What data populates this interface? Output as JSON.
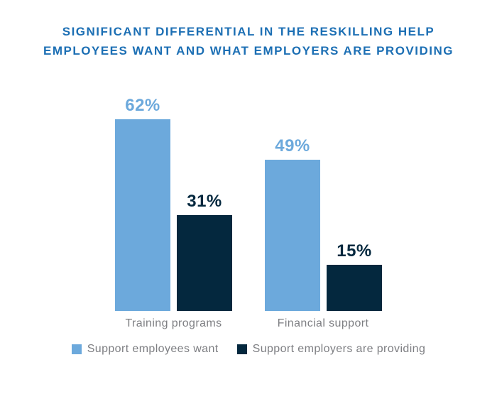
{
  "title": {
    "lines": [
      "SIGNIFICANT DIFFERENTIAL IN THE RESKILLING HELP",
      "EMPLOYEES WANT AND WHAT EMPLOYERS ARE PROVIDING"
    ],
    "full": "SIGNIFICANT DIFFERENTIAL IN THE RESKILLING HELP EMPLOYEES WANT AND WHAT EMPLOYERS ARE PROVIDING",
    "color": "#1C6FB4"
  },
  "chart_data": {
    "type": "bar",
    "title": "SIGNIFICANT DIFFERENTIAL IN THE RESKILLING HELP EMPLOYEES WANT AND WHAT EMPLOYERS ARE PROVIDING",
    "categories": [
      "Training programs",
      "Financial support"
    ],
    "series": [
      {
        "name": "Support employees want",
        "color": "#6CA9DC",
        "values": [
          62,
          49
        ]
      },
      {
        "name": "Support employers are providing",
        "color": "#04283E",
        "values": [
          31,
          15
        ]
      }
    ],
    "value_suffix": "%",
    "value_labels_shown": [
      "62%",
      "31%",
      "49%",
      "15%"
    ],
    "xlabel": "",
    "ylabel": "",
    "ylim": [
      0,
      70
    ],
    "grid": false,
    "axes_shown": false,
    "legend_position": "bottom",
    "background": "#FFFFFF",
    "muted_text_color": "#7D7E82"
  }
}
